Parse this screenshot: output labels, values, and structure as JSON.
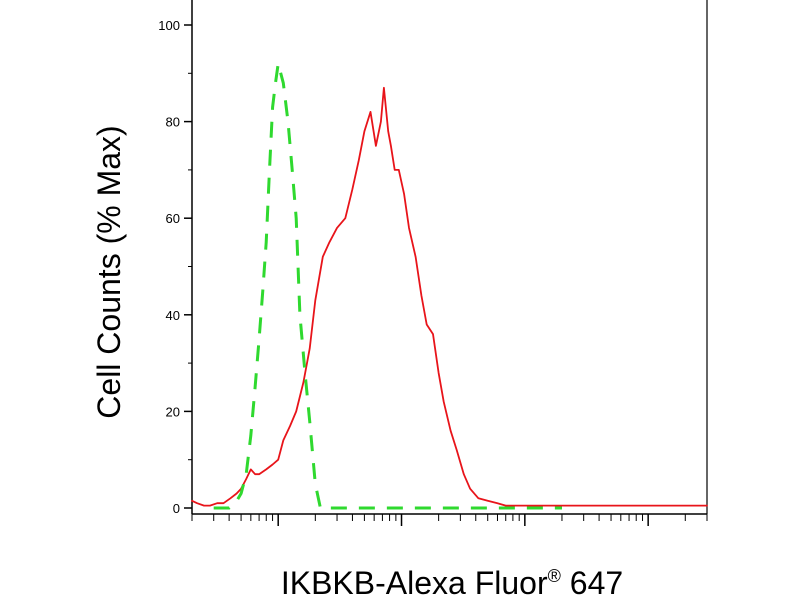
{
  "chart_data": {
    "type": "line",
    "xlabel": "IKBKB-Alexa Fluor",
    "xlabel_superscript": "®",
    "xlabel_suffix": " 647",
    "ylabel": "Cell Counts (% Max)",
    "x_scale": "log",
    "xlim": [
      20,
      300000
    ],
    "ylim": [
      0,
      105
    ],
    "y_ticks": [
      0,
      20,
      40,
      60,
      80,
      100
    ],
    "grid": false,
    "series": [
      {
        "color": "#e8141a",
        "style": "solid",
        "x": [
          20,
          22,
          25,
          28,
          32,
          36,
          41,
          46,
          50,
          55,
          60,
          65,
          70,
          80,
          90,
          100,
          110,
          125,
          140,
          160,
          180,
          200,
          230,
          260,
          300,
          350,
          400,
          450,
          500,
          560,
          620,
          680,
          720,
          780,
          820,
          880,
          950,
          1050,
          1150,
          1300,
          1450,
          1600,
          1800,
          2000,
          2200,
          2500,
          2800,
          3200,
          3600,
          4200,
          5000,
          6000,
          7000,
          8500,
          10000,
          13000,
          17000,
          22000,
          30000,
          50000,
          80000,
          150000,
          300000
        ],
        "y": [
          1.5,
          1,
          0.5,
          0.5,
          1,
          1,
          2,
          3,
          4,
          6,
          8,
          7,
          7,
          8,
          9,
          10,
          14,
          17,
          20,
          26,
          33,
          43,
          52,
          55,
          58,
          60,
          66,
          72,
          78,
          82,
          75,
          80,
          87,
          78,
          75,
          70,
          70,
          65,
          58,
          52,
          44,
          38,
          36,
          28,
          22,
          16,
          12,
          7,
          4,
          2,
          1.5,
          1,
          0.5,
          0.5,
          0.5,
          0.5,
          0.5,
          0.5,
          0.5,
          0.5,
          0.5,
          0.5,
          0.5
        ]
      },
      {
        "color": "#2fd92f",
        "style": "dashed",
        "x": [
          30,
          35,
          40,
          45,
          50,
          55,
          60,
          65,
          70,
          75,
          80,
          85,
          90,
          95,
          100,
          110,
          120,
          130,
          140,
          150,
          165,
          180,
          200,
          220,
          240,
          270,
          300,
          350,
          400,
          500,
          700,
          1000,
          2000,
          4000,
          8000,
          20000
        ],
        "y": [
          0,
          0,
          0,
          1,
          3,
          7,
          15,
          25,
          35,
          45,
          55,
          70,
          83,
          88,
          92,
          88,
          80,
          70,
          60,
          40,
          28,
          18,
          5,
          0,
          0,
          0,
          0,
          0,
          0,
          0,
          0,
          0,
          0,
          0,
          0,
          0
        ]
      }
    ]
  }
}
